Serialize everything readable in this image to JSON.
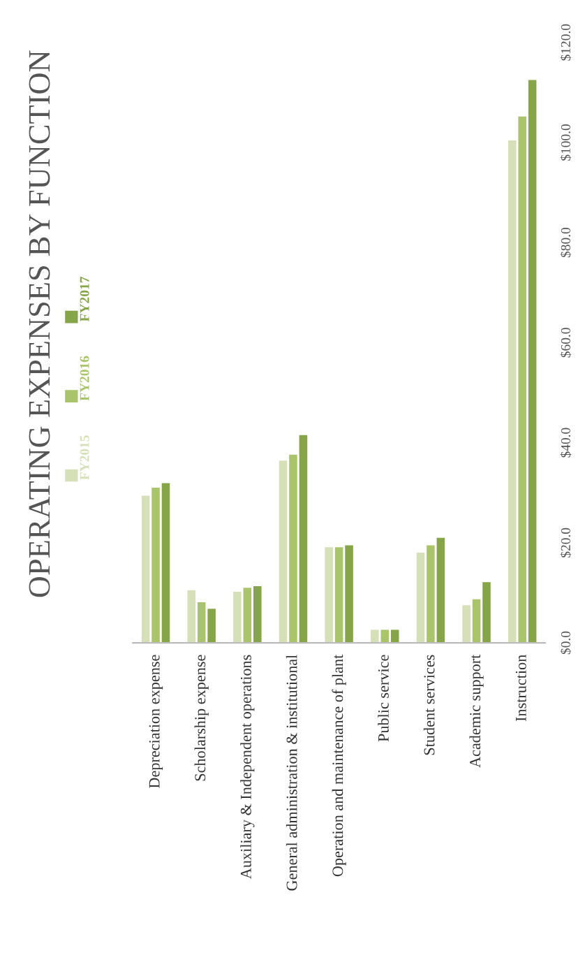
{
  "chart_data": {
    "type": "bar",
    "title": "OPERATING EXPENSES BY FUNCTION",
    "categories": [
      "Depreciation expense",
      "Scholarship expense",
      "Auxiliary & Independent operations",
      "General administration & institutional",
      "Operation and maintenance of plant",
      "Public service",
      "Student services",
      "Academic support",
      "Instruction"
    ],
    "series": [
      {
        "name": "FY2015",
        "color": "#d6e0b8",
        "values": [
          29.4,
          10.5,
          10.2,
          36.4,
          19.1,
          2.6,
          18.0,
          7.5,
          100.4
        ]
      },
      {
        "name": "FY2016",
        "color": "#a9c46a",
        "values": [
          31.0,
          8.1,
          11.0,
          37.6,
          19.1,
          2.6,
          19.5,
          8.7,
          105.2
        ]
      },
      {
        "name": "FY2017",
        "color": "#86a548",
        "values": [
          31.9,
          6.8,
          11.3,
          41.5,
          19.5,
          2.6,
          21.0,
          12.1,
          112.5
        ]
      }
    ],
    "ylim": [
      0,
      120
    ],
    "yticks": [
      {
        "value": 0,
        "label": "$0.0"
      },
      {
        "value": 20,
        "label": "$20.0"
      },
      {
        "value": 40,
        "label": "$40.0"
      },
      {
        "value": 60,
        "label": "$60.0"
      },
      {
        "value": 80,
        "label": "$80.0"
      },
      {
        "value": 100,
        "label": "$100.0"
      },
      {
        "value": 120,
        "label": "$120.0"
      }
    ],
    "legend": "left",
    "grid": false
  }
}
